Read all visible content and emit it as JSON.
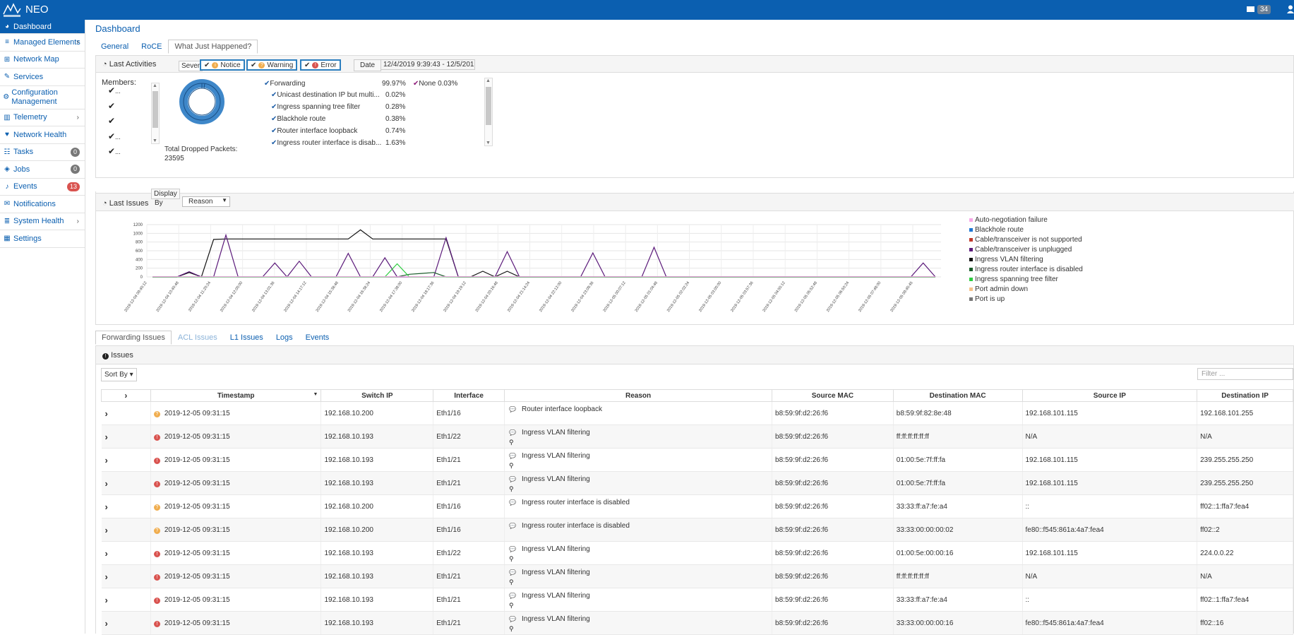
{
  "app": {
    "title": "NEO",
    "mail_count": "34"
  },
  "sidebar": {
    "items": [
      {
        "label": "Dashboard",
        "icon": "dashboard-icon",
        "active": true
      },
      {
        "label": "Managed Elements",
        "icon": "list-icon",
        "chevron": true
      },
      {
        "label": "Network Map",
        "icon": "sitemap-icon"
      },
      {
        "label": "Services",
        "icon": "wrench-icon"
      },
      {
        "label": "Configuration Management",
        "icon": "gear-icon"
      },
      {
        "label": "Telemetry",
        "icon": "bar-chart-icon",
        "chevron": true
      },
      {
        "label": "Network Health",
        "icon": "heartbeat-icon"
      },
      {
        "label": "Tasks",
        "icon": "tasks-icon",
        "badge": "0"
      },
      {
        "label": "Jobs",
        "icon": "cube-icon",
        "badge": "0"
      },
      {
        "label": "Events",
        "icon": "bell-icon",
        "badge": "13"
      },
      {
        "label": "Notifications",
        "icon": "notification-icon"
      },
      {
        "label": "System Health",
        "icon": "server-icon",
        "chevron": true
      },
      {
        "label": "Settings",
        "icon": "grid-icon"
      }
    ]
  },
  "header": {
    "title": "Dashboard"
  },
  "tabs": [
    "General",
    "RoCE",
    "What Just Happened?"
  ],
  "activities": {
    "title": "Last Activities",
    "severity_label": "Sever",
    "severities": [
      {
        "label": "Notice",
        "color": "#f0ad4e",
        "glyph": "i"
      },
      {
        "label": "Warning",
        "color": "#f0ad4e",
        "glyph": "?"
      },
      {
        "label": "Error",
        "color": "#d9534f",
        "glyph": "!"
      }
    ],
    "date_label": "Date",
    "date_value": "12/4/2019 9:39:43 - 12/5/201",
    "members_label": "Members:",
    "members": [
      "...",
      "",
      "",
      "...",
      "..."
    ],
    "total_label": "Total Dropped Packets:",
    "total_value": "23595",
    "forwarding": {
      "label": "Forwarding",
      "pct": "99.97%",
      "none_label": "None 0.03%"
    },
    "reasons": [
      {
        "label": "Unicast destination IP but multi...",
        "pct": "0.02%"
      },
      {
        "label": "Ingress spanning tree filter",
        "pct": "0.28%"
      },
      {
        "label": "Blackhole route",
        "pct": "0.38%"
      },
      {
        "label": "Router interface loopback",
        "pct": "0.74%"
      },
      {
        "label": "Ingress router interface is disab...",
        "pct": "1.63%"
      }
    ]
  },
  "issues_chart": {
    "title": "Last Issues",
    "display_label": "Display",
    "by_label": "By",
    "by_value": "Reason"
  },
  "chart_data": {
    "type": "line",
    "yticks": [
      "1200",
      "1000",
      "800",
      "600",
      "400",
      "200",
      "0"
    ],
    "ylim": [
      0,
      1200
    ],
    "xticks": [
      "2019-12-04 09:40:12",
      "2019-12-04 10:40:48",
      "2019-12-04 11:20:24",
      "2019-12-04 12:00:00",
      "2019-12-04 13:01:36",
      "2019-12-04 14:17:12",
      "2019-12-04 15:38:48",
      "2019-12-04 16:38:24",
      "2019-12-04 17:38:00",
      "2019-12-04 18:17:36",
      "2019-12-04 19:19:12",
      "2019-12-04 20:16:48",
      "2019-12-04 21:14:24",
      "2019-12-04 22:12:00",
      "2019-12-04 23:09:36",
      "2019-12-05 00:07:12",
      "2019-12-05 01:04:48",
      "2019-12-05 02:02:24",
      "2019-12-05 03:00:00",
      "2019-12-05 03:57:36",
      "2019-12-05 04:55:12",
      "2019-12-05 05:52:48",
      "2019-12-05 06:50:24",
      "2019-12-05 07:48:00",
      "2019-12-05 09:45:45"
    ],
    "legend": [
      {
        "name": "Auto-negotiation failure",
        "color": "#f7a8e8"
      },
      {
        "name": "Blackhole route",
        "color": "#1f77d4"
      },
      {
        "name": "Cable/transceiver is not supported",
        "color": "#c0392b"
      },
      {
        "name": "Cable/transceiver is unplugged",
        "color": "#5b1a7a"
      },
      {
        "name": "Ingress VLAN filtering",
        "color": "#111111"
      },
      {
        "name": "Ingress router interface is disabled",
        "color": "#1a5c2a"
      },
      {
        "name": "Ingress spanning tree filter",
        "color": "#2ecc40"
      },
      {
        "name": "Port admin down",
        "color": "#f5c28a"
      },
      {
        "name": "Port is up",
        "color": "#777777"
      }
    ],
    "series": [
      {
        "name": "Ingress VLAN filtering",
        "color": "#111111",
        "values": [
          0,
          0,
          0,
          100,
          0,
          860,
          870,
          870,
          870,
          870,
          870,
          870,
          870,
          870,
          870,
          870,
          870,
          1080,
          870,
          870,
          870,
          870,
          870,
          870,
          870,
          0,
          0,
          130,
          0,
          130,
          0,
          0,
          0,
          0,
          0,
          0,
          0,
          0,
          0,
          0,
          0,
          0,
          0,
          0,
          0,
          0,
          0,
          0,
          0,
          0,
          0,
          0,
          0,
          0,
          0,
          0,
          0,
          0,
          0,
          0,
          0,
          0,
          0,
          0,
          0
        ]
      },
      {
        "name": "Cable/transceiver is unplugged",
        "color": "#5b1a7a",
        "values": [
          0,
          0,
          0,
          120,
          0,
          0,
          960,
          0,
          0,
          0,
          320,
          0,
          360,
          0,
          0,
          0,
          540,
          0,
          0,
          440,
          0,
          0,
          0,
          0,
          900,
          0,
          0,
          0,
          0,
          580,
          0,
          0,
          0,
          0,
          0,
          0,
          550,
          0,
          0,
          0,
          0,
          680,
          0,
          0,
          0,
          0,
          0,
          0,
          0,
          0,
          0,
          0,
          0,
          0,
          0,
          0,
          0,
          0,
          0,
          0,
          0,
          0,
          0,
          320,
          0
        ]
      },
      {
        "name": "Ingress router interface is disabled",
        "color": "#1a5c2a",
        "values": [
          0,
          0,
          0,
          0,
          0,
          0,
          0,
          0,
          0,
          0,
          0,
          0,
          0,
          0,
          0,
          0,
          0,
          0,
          0,
          0,
          0,
          60,
          80,
          100,
          0,
          0,
          0,
          0,
          0,
          0,
          0,
          0,
          0,
          0,
          0,
          0,
          0,
          0,
          0,
          0,
          0,
          0,
          0,
          0,
          0,
          0,
          0,
          0,
          0,
          0,
          0,
          0,
          0,
          0,
          0,
          0,
          0,
          0,
          0,
          0,
          0,
          0,
          0,
          0,
          0
        ]
      },
      {
        "name": "Ingress spanning tree filter",
        "color": "#2ecc40",
        "values": [
          0,
          0,
          0,
          0,
          0,
          0,
          0,
          0,
          0,
          0,
          0,
          0,
          0,
          0,
          0,
          0,
          0,
          0,
          0,
          0,
          300,
          0,
          0,
          0,
          0,
          0,
          0,
          0,
          0,
          0,
          0,
          0,
          0,
          0,
          0,
          0,
          0,
          0,
          0,
          0,
          0,
          0,
          0,
          0,
          0,
          0,
          0,
          0,
          0,
          0,
          0,
          0,
          0,
          0,
          0,
          0,
          0,
          0,
          0,
          0,
          0,
          0,
          0,
          0,
          0
        ]
      },
      {
        "name": "Auto-negotiation failure",
        "color": "#f7a8e8",
        "values": [
          5,
          5,
          5,
          5,
          5,
          5,
          5,
          5,
          5,
          5,
          5,
          5,
          5,
          5,
          5,
          5,
          5,
          5,
          5,
          5,
          5,
          5,
          5,
          5,
          5,
          5,
          5,
          5,
          5,
          5,
          5,
          5,
          5,
          5,
          5,
          5,
          5,
          5,
          5,
          5,
          5,
          5,
          5,
          5,
          5,
          5,
          5,
          5,
          5,
          5,
          5,
          5,
          5,
          5,
          5,
          5,
          5,
          5,
          5,
          5,
          5,
          5,
          5,
          5,
          5
        ]
      }
    ]
  },
  "issues": {
    "tabs": [
      "Forwarding Issues",
      "ACL Issues",
      "L1 Issues",
      "Logs",
      "Events"
    ],
    "title": "Issues",
    "sort_label": "Sort By",
    "filter_placeholder": "Filter ...",
    "columns": [
      "Timestamp",
      "Switch IP",
      "Interface",
      "Reason",
      "Source MAC",
      "Destination MAC",
      "Source IP",
      "Destination IP"
    ],
    "rows": [
      {
        "sev": "warn",
        "ts": "2019-12-05 09:31:15",
        "ip": "192.168.10.200",
        "iface": "Eth1/16",
        "reason": "Router interface loopback",
        "mag": false,
        "smac": "b8:59:9f:d2:26:f6",
        "dmac": "b8:59:9f:82:8e:48",
        "sip": "192.168.101.115",
        "dip": "192.168.101.255"
      },
      {
        "sev": "err",
        "ts": "2019-12-05 09:31:15",
        "ip": "192.168.10.193",
        "iface": "Eth1/22",
        "reason": "Ingress VLAN filtering",
        "mag": true,
        "smac": "b8:59:9f:d2:26:f6",
        "dmac": "ff:ff:ff:ff:ff:ff",
        "sip": "N/A",
        "dip": "N/A"
      },
      {
        "sev": "err",
        "ts": "2019-12-05 09:31:15",
        "ip": "192.168.10.193",
        "iface": "Eth1/21",
        "reason": "Ingress VLAN filtering",
        "mag": true,
        "smac": "b8:59:9f:d2:26:f6",
        "dmac": "01:00:5e:7f:ff:fa",
        "sip": "192.168.101.115",
        "dip": "239.255.255.250"
      },
      {
        "sev": "err",
        "ts": "2019-12-05 09:31:15",
        "ip": "192.168.10.193",
        "iface": "Eth1/21",
        "reason": "Ingress VLAN filtering",
        "mag": true,
        "smac": "b8:59:9f:d2:26:f6",
        "dmac": "01:00:5e:7f:ff:fa",
        "sip": "192.168.101.115",
        "dip": "239.255.255.250"
      },
      {
        "sev": "warn",
        "ts": "2019-12-05 09:31:15",
        "ip": "192.168.10.200",
        "iface": "Eth1/16",
        "reason": "Ingress router interface is disabled",
        "mag": false,
        "smac": "b8:59:9f:d2:26:f6",
        "dmac": "33:33:ff:a7:fe:a4",
        "sip": "::",
        "dip": "ff02::1:ffa7:fea4"
      },
      {
        "sev": "warn",
        "ts": "2019-12-05 09:31:15",
        "ip": "192.168.10.200",
        "iface": "Eth1/16",
        "reason": "Ingress router interface is disabled",
        "mag": false,
        "smac": "b8:59:9f:d2:26:f6",
        "dmac": "33:33:00:00:00:02",
        "sip": "fe80::f545:861a:4a7:fea4",
        "dip": "ff02::2"
      },
      {
        "sev": "err",
        "ts": "2019-12-05 09:31:15",
        "ip": "192.168.10.193",
        "iface": "Eth1/22",
        "reason": "Ingress VLAN filtering",
        "mag": true,
        "smac": "b8:59:9f:d2:26:f6",
        "dmac": "01:00:5e:00:00:16",
        "sip": "192.168.101.115",
        "dip": "224.0.0.22"
      },
      {
        "sev": "err",
        "ts": "2019-12-05 09:31:15",
        "ip": "192.168.10.193",
        "iface": "Eth1/21",
        "reason": "Ingress VLAN filtering",
        "mag": true,
        "smac": "b8:59:9f:d2:26:f6",
        "dmac": "ff:ff:ff:ff:ff:ff",
        "sip": "N/A",
        "dip": "N/A"
      },
      {
        "sev": "err",
        "ts": "2019-12-05 09:31:15",
        "ip": "192.168.10.193",
        "iface": "Eth1/21",
        "reason": "Ingress VLAN filtering",
        "mag": true,
        "smac": "b8:59:9f:d2:26:f6",
        "dmac": "33:33:ff:a7:fe:a4",
        "sip": "::",
        "dip": "ff02::1:ffa7:fea4"
      },
      {
        "sev": "err",
        "ts": "2019-12-05 09:31:15",
        "ip": "192.168.10.193",
        "iface": "Eth1/21",
        "reason": "Ingress VLAN filtering",
        "mag": true,
        "smac": "b8:59:9f:d2:26:f6",
        "dmac": "33:33:00:00:00:16",
        "sip": "fe80::f545:861a:4a7:fea4",
        "dip": "ff02::16"
      }
    ]
  }
}
